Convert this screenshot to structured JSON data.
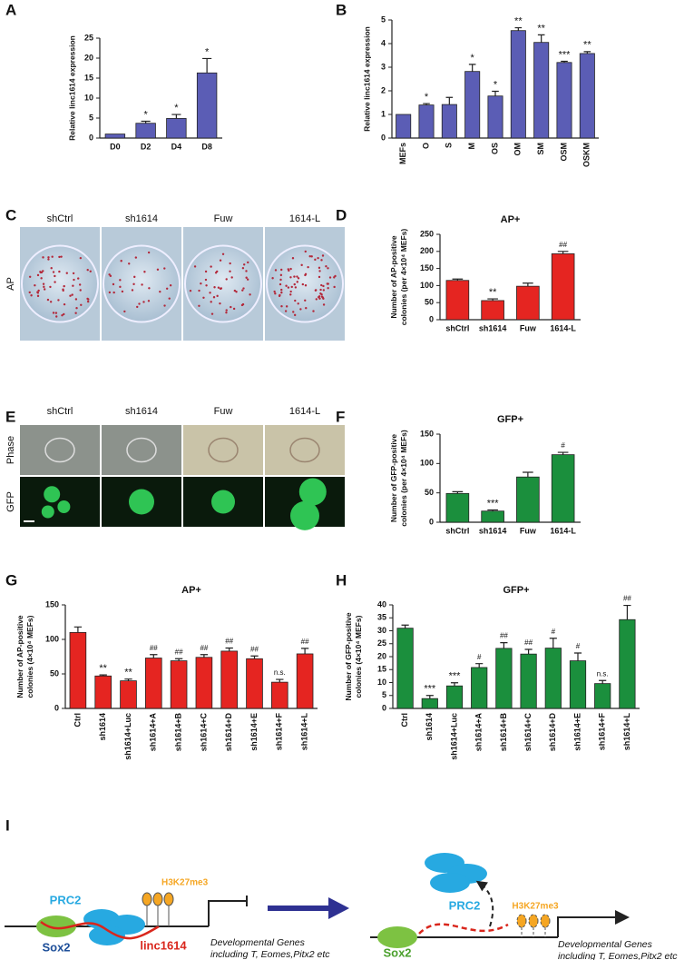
{
  "chart_data": [
    {
      "type": "bar",
      "panel": "A",
      "y_label": [
        "Relative linc1614 expression"
      ],
      "categories": [
        "D0",
        "D2",
        "D4",
        "D8"
      ],
      "values": [
        1,
        3.7,
        4.9,
        16.3
      ],
      "errors": [
        0,
        0.5,
        1.0,
        3.6
      ],
      "annotations": [
        null,
        "*",
        "*",
        "*"
      ],
      "color": "#5b5db5",
      "ylim": [
        0,
        25
      ],
      "yticks": [
        0,
        5,
        10,
        15,
        20,
        25
      ]
    },
    {
      "type": "bar",
      "panel": "B",
      "y_label": [
        "Relative linc1614 expression"
      ],
      "categories": [
        "MEFs",
        "O",
        "S",
        "M",
        "OS",
        "OM",
        "SM",
        "OSM",
        "OSKM"
      ],
      "values": [
        1.0,
        1.4,
        1.42,
        2.82,
        1.78,
        4.55,
        4.05,
        3.2,
        3.58
      ],
      "errors": [
        0,
        0.06,
        0.3,
        0.3,
        0.2,
        0.12,
        0.32,
        0.05,
        0.08
      ],
      "annotations": [
        null,
        "*",
        null,
        "*",
        "*",
        "**",
        "**",
        "***",
        "**"
      ],
      "color": "#5b5db5",
      "ylim": [
        0,
        5
      ],
      "yticks": [
        0,
        1,
        2,
        3,
        4,
        5
      ]
    },
    {
      "type": "bar",
      "panel": "D",
      "title": "AP+",
      "y_label": [
        "Number of AP-positive",
        "colonies (per 4×10⁴ MEFs)"
      ],
      "categories": [
        "shCtrl",
        "sh1614",
        "Fuw",
        "1614-L"
      ],
      "values": [
        115,
        56,
        98,
        193
      ],
      "errors": [
        4,
        5,
        9,
        7
      ],
      "annotations": [
        null,
        "**",
        null,
        "##"
      ],
      "color": "#e52521",
      "ylim": [
        0,
        250
      ],
      "yticks": [
        0,
        50,
        100,
        150,
        200,
        250
      ]
    },
    {
      "type": "bar",
      "panel": "F",
      "title": "GFP+",
      "y_label": [
        "Number of GFP-positive",
        "colonies (per 4×10⁴ MEFs)"
      ],
      "categories": [
        "shCtrl",
        "sh1614",
        "Fuw",
        "1614-L"
      ],
      "values": [
        49,
        19,
        77,
        115
      ],
      "errors": [
        3,
        2,
        8,
        4
      ],
      "annotations": [
        null,
        "***",
        null,
        "#"
      ],
      "color": "#1b8f3d",
      "ylim": [
        0,
        150
      ],
      "yticks": [
        0,
        50,
        100,
        150
      ]
    },
    {
      "type": "bar",
      "panel": "G",
      "title": "AP+",
      "y_label": [
        "Number of AP-positive",
        "colonies (4×10⁴ MEFs)"
      ],
      "categories": [
        "Ctrl",
        "sh1614",
        "sh1614+Luc",
        "sh1614+A",
        "sh1614+B",
        "sh1614+C",
        "sh1614+D",
        "sh1614+E",
        "sh1614+F",
        "sh1614+L"
      ],
      "values": [
        110,
        47,
        40,
        73,
        69,
        74,
        83,
        72,
        38,
        79
      ],
      "errors": [
        8,
        1.5,
        2.5,
        5,
        3,
        4,
        4.5,
        4,
        4,
        8
      ],
      "annotations": [
        null,
        "**",
        "**",
        "##",
        "##",
        "##",
        "##",
        "##",
        "n.s.",
        "##"
      ],
      "color": "#e52521",
      "ylim": [
        0,
        150
      ],
      "yticks": [
        0,
        50,
        100,
        150
      ]
    },
    {
      "type": "bar",
      "panel": "H",
      "title": "GFP+",
      "y_label": [
        "Number of GFP-positive",
        "colonies (4×10⁴ MEFs)"
      ],
      "categories": [
        "Ctrl",
        "sh1614",
        "sh1614+Luc",
        "sh1614+A",
        "sh1614+B",
        "sh1614+C",
        "sh1614+D",
        "sh1614+E",
        "sh1614+F",
        "sh1614+L"
      ],
      "values": [
        31,
        3.8,
        8.7,
        15.8,
        23.2,
        21,
        23.3,
        18.4,
        9.6,
        34.3
      ],
      "errors": [
        1.2,
        1.2,
        1.2,
        1.5,
        2.2,
        1.8,
        3.8,
        3,
        1.2,
        5.5
      ],
      "annotations": [
        null,
        "***",
        "***",
        "#",
        "##",
        "##",
        "#",
        "#",
        "n.s.",
        "##"
      ],
      "color": "#1b8f3d",
      "ylim": [
        0,
        40
      ],
      "yticks": [
        0,
        5,
        10,
        15,
        20,
        25,
        30,
        35,
        40
      ]
    }
  ],
  "photos": [
    {
      "panel": "C",
      "columns": [
        "shCtrl",
        "sh1614",
        "Fuw",
        "1614-L"
      ],
      "rows": [
        "AP"
      ]
    },
    {
      "panel": "E",
      "columns": [
        "shCtrl",
        "sh1614",
        "Fuw",
        "1614-L"
      ],
      "rows": [
        "Phase",
        "GFP"
      ]
    }
  ],
  "diagram": {
    "panel": "I",
    "left": {
      "prc2": "PRC2",
      "mark": "H3K27me3",
      "sox2": "Sox2",
      "rna": "linc1614",
      "genes": [
        "Developmental Genes",
        "including T, Eomes,Pitx2 etc"
      ]
    },
    "right": {
      "prc2": "PRC2",
      "mark": "H3K27me3",
      "sox2": "Sox2",
      "genes": [
        "Developmental Genes",
        "including T, Eomes,Pitx2 etc"
      ]
    }
  }
}
